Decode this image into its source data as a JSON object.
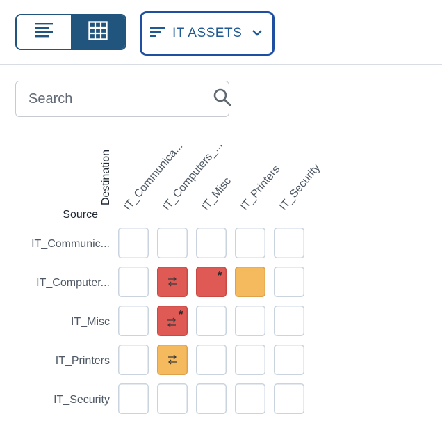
{
  "toolbar": {
    "view_modes": [
      {
        "name": "list",
        "icon": "list-view-icon",
        "selected": false
      },
      {
        "name": "grid",
        "icon": "grid-view-icon",
        "selected": true
      }
    ],
    "group_select": {
      "label": "IT ASSETS",
      "icon": "sort-lines-icon",
      "chevron": "chevron-down-icon"
    }
  },
  "search": {
    "placeholder": "Search",
    "value": "",
    "icon": "search-icon"
  },
  "matrix": {
    "source_label": "Source",
    "destination_label": "Destination",
    "columns": [
      "IT_Communica...",
      "IT_Computers_...",
      "IT_Misc",
      "IT_Printers",
      "IT_Security"
    ],
    "rows": [
      "IT_Communic...",
      "IT_Computer...",
      "IT_Misc",
      "IT_Printers",
      "IT_Security"
    ],
    "cells": [
      [
        {
          "status": "empty"
        },
        {
          "status": "empty"
        },
        {
          "status": "empty"
        },
        {
          "status": "empty"
        },
        {
          "status": "empty"
        }
      ],
      [
        {
          "status": "empty"
        },
        {
          "status": "red",
          "icon": "bidirectional-arrows-icon"
        },
        {
          "status": "red",
          "icon": "asterisk-icon"
        },
        {
          "status": "orange"
        },
        {
          "status": "empty"
        }
      ],
      [
        {
          "status": "empty"
        },
        {
          "status": "red",
          "icon": "bidirectional-arrows-asterisk-icon"
        },
        {
          "status": "empty"
        },
        {
          "status": "empty"
        },
        {
          "status": "empty"
        }
      ],
      [
        {
          "status": "empty"
        },
        {
          "status": "orange",
          "icon": "bidirectional-arrows-icon"
        },
        {
          "status": "empty"
        },
        {
          "status": "empty"
        },
        {
          "status": "empty"
        }
      ],
      [
        {
          "status": "empty"
        },
        {
          "status": "empty"
        },
        {
          "status": "empty"
        },
        {
          "status": "empty"
        },
        {
          "status": "empty"
        }
      ]
    ],
    "colors": {
      "red": "#e05a55",
      "orange": "#f5b95e",
      "empty": "#ffffff",
      "border_empty": "#c9d4df",
      "border_red": "#c94a45",
      "border_orange": "#dfa24c"
    }
  }
}
